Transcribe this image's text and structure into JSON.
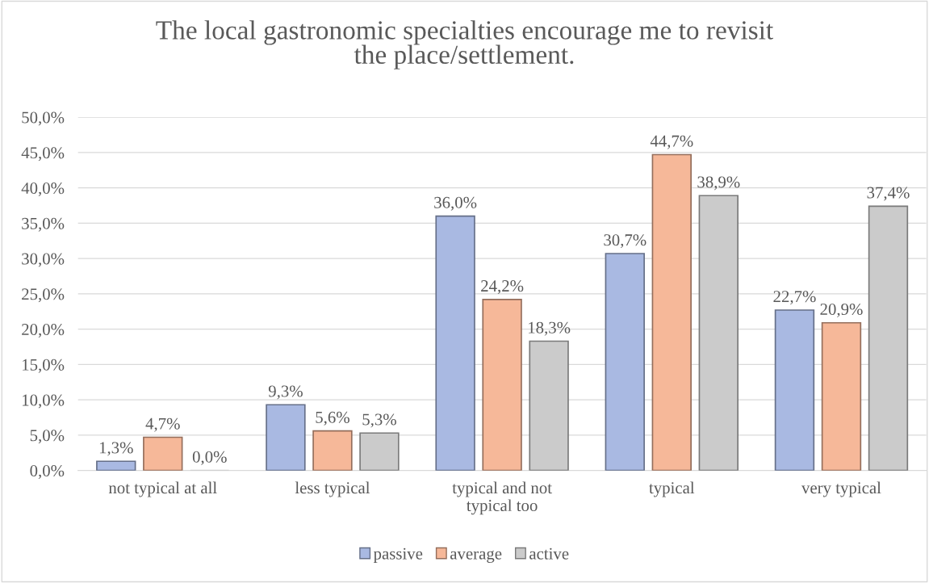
{
  "chart_data": {
    "type": "bar",
    "title": "The local gastronomic specialties encourage me to revisit\nthe place/settlement.",
    "categories": [
      "not typical at all",
      "less typical",
      "typical and not\ntypical too",
      "typical",
      "very typical"
    ],
    "series": [
      {
        "name": "passive",
        "color": "#a9b9e2",
        "values": [
          1.3,
          9.3,
          36.0,
          30.7,
          22.7
        ],
        "value_labels": [
          "1,3%",
          "9,3%",
          "36,0%",
          "30,7%",
          "22,7%"
        ]
      },
      {
        "name": "average",
        "color": "#f6b899",
        "values": [
          4.7,
          5.6,
          24.2,
          44.7,
          20.9
        ],
        "value_labels": [
          "4,7%",
          "5,6%",
          "24,2%",
          "44,7%",
          "20,9%"
        ]
      },
      {
        "name": "active",
        "color": "#cbcbcb",
        "values": [
          0.0,
          5.3,
          18.3,
          38.9,
          37.4
        ],
        "value_labels": [
          "0,0%",
          "5,3%",
          "18,3%",
          "38,9%",
          "37,4%"
        ]
      }
    ],
    "ylim": [
      0,
      50
    ],
    "yticks": [
      {
        "value": 0,
        "label": "0,0%"
      },
      {
        "value": 5,
        "label": "5,0%"
      },
      {
        "value": 10,
        "label": "10,0%"
      },
      {
        "value": 15,
        "label": "15,0%"
      },
      {
        "value": 20,
        "label": "20,0%"
      },
      {
        "value": 25,
        "label": "25,0%"
      },
      {
        "value": 30,
        "label": "30,0%"
      },
      {
        "value": 35,
        "label": "35,0%"
      },
      {
        "value": 40,
        "label": "40,0%"
      },
      {
        "value": 45,
        "label": "45,0%"
      },
      {
        "value": 50,
        "label": "50,0%"
      }
    ],
    "grid": "y",
    "legend": "bottom"
  }
}
